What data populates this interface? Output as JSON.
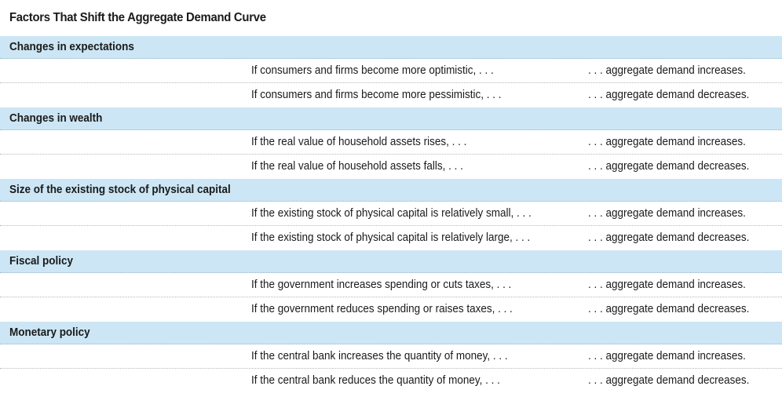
{
  "title": "Factors That Shift the Aggregate Demand Curve",
  "sections": [
    {
      "heading": "Changes in expectations",
      "rows": [
        {
          "condition": "If consumers and firms become more optimistic, . . .",
          "effect": ". . . aggregate demand increases."
        },
        {
          "condition": "If consumers and firms become more pessimistic, . . .",
          "effect": ". . . aggregate demand decreases."
        }
      ]
    },
    {
      "heading": "Changes in wealth",
      "rows": [
        {
          "condition": "If the real value of household assets rises, . . .",
          "effect": ". . . aggregate demand increases."
        },
        {
          "condition": "If the real value of household assets falls, . . .",
          "effect": ". . . aggregate demand decreases."
        }
      ]
    },
    {
      "heading": "Size of the existing stock of physical capital",
      "rows": [
        {
          "condition": "If the existing stock of physical capital is relatively small, . . .",
          "effect": ". . . aggregate demand increases."
        },
        {
          "condition": "If the existing stock of physical capital is relatively large, . . .",
          "effect": ". . . aggregate demand decreases."
        }
      ]
    },
    {
      "heading": "Fiscal policy",
      "rows": [
        {
          "condition": "If the government increases spending or cuts taxes, . . .",
          "effect": ". . . aggregate demand increases."
        },
        {
          "condition": "If the government reduces spending or raises taxes, . . .",
          "effect": ". . . aggregate demand decreases."
        }
      ]
    },
    {
      "heading": "Monetary policy",
      "rows": [
        {
          "condition": "If the central bank increases the quantity of money, . . .",
          "effect": ". . . aggregate demand increases."
        },
        {
          "condition": "If the central bank reduces the quantity of money, . . .",
          "effect": ". . . aggregate demand decreases."
        }
      ]
    }
  ],
  "colors": {
    "section_header_bg": "#cce6f5",
    "text": "#1a1a1a"
  }
}
